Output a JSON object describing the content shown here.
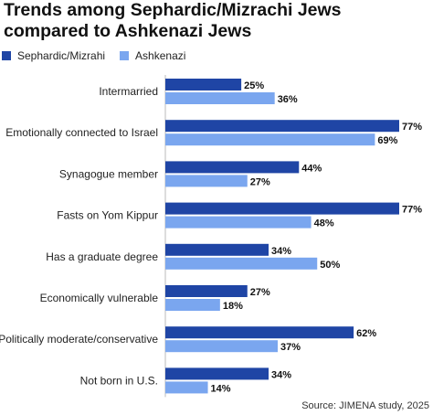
{
  "chart_data": {
    "type": "bar",
    "orientation": "horizontal",
    "title": "Trends among Sephardic/Mizrachi Jews compared to Ashkenazi Jews",
    "categories": [
      "Intermarried",
      "Emotionally connected to Israel",
      "Synagogue member",
      "Fasts on Yom Kippur",
      "Has a graduate degree",
      "Economically vulnerable",
      "Politically moderate/conservative",
      "Not born in U.S."
    ],
    "series": [
      {
        "name": "Sephardic/Mizrahi",
        "color": "#1f45a5",
        "values": [
          25,
          77,
          44,
          77,
          34,
          27,
          62,
          34
        ]
      },
      {
        "name": "Ashkenazi",
        "color": "#7aa6ef",
        "values": [
          36,
          69,
          27,
          48,
          50,
          18,
          37,
          14
        ]
      }
    ],
    "value_suffix": "%",
    "xlim": [
      0,
      77
    ],
    "grid": false,
    "legend_position": "top-left",
    "source": "Source: JIMENA study, 2025"
  }
}
